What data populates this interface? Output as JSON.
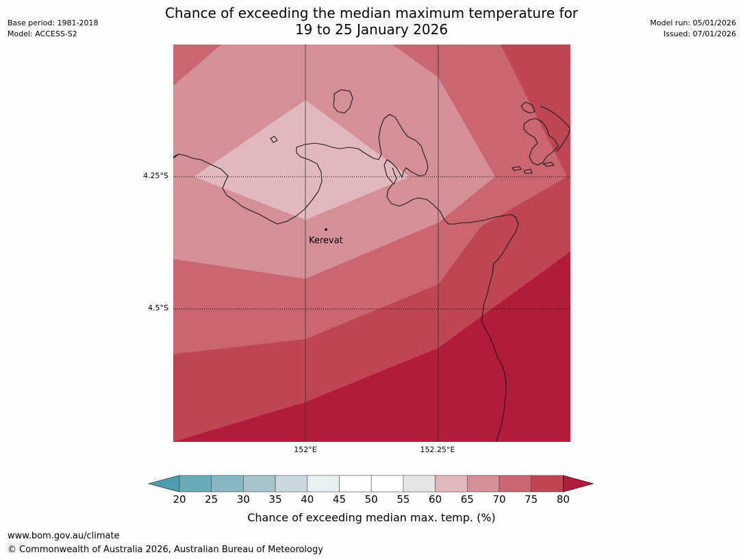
{
  "title_line1": "Chance of exceeding the median maximum temperature for",
  "title_line2": "19 to 25 January 2026",
  "meta_left": {
    "base_period": "Base period: 1981-2018",
    "model": "Model: ACCESS-S2"
  },
  "meta_right": {
    "model_run": "Model run: 05/01/2026",
    "issued": "Issued: 07/01/2026"
  },
  "map": {
    "lat_labels": [
      "4.25°S",
      "4.5°S"
    ],
    "lon_labels": [
      "152°E",
      "152.25°E"
    ],
    "place": "Kerevat"
  },
  "colorbar": {
    "ticks": [
      "20",
      "25",
      "30",
      "35",
      "40",
      "45",
      "50",
      "55",
      "60",
      "65",
      "70",
      "75",
      "80"
    ],
    "colors": [
      "#4d9fb0",
      "#6aabba",
      "#89b6c3",
      "#a7c4ca",
      "#c9d9dd",
      "#e8f0f2",
      "#ffffff",
      "#ffffff",
      "#e6e6e6",
      "#e1b8bd",
      "#d58f97",
      "#c96671",
      "#be4553",
      "#b11c3a"
    ],
    "label": "Chance of exceeding median max. temp. (%)"
  },
  "footer": {
    "url": "www.bom.gov.au/climate",
    "copyright": "© Commonwealth of Australia 2026, Australian Bureau of Meteorology"
  }
}
